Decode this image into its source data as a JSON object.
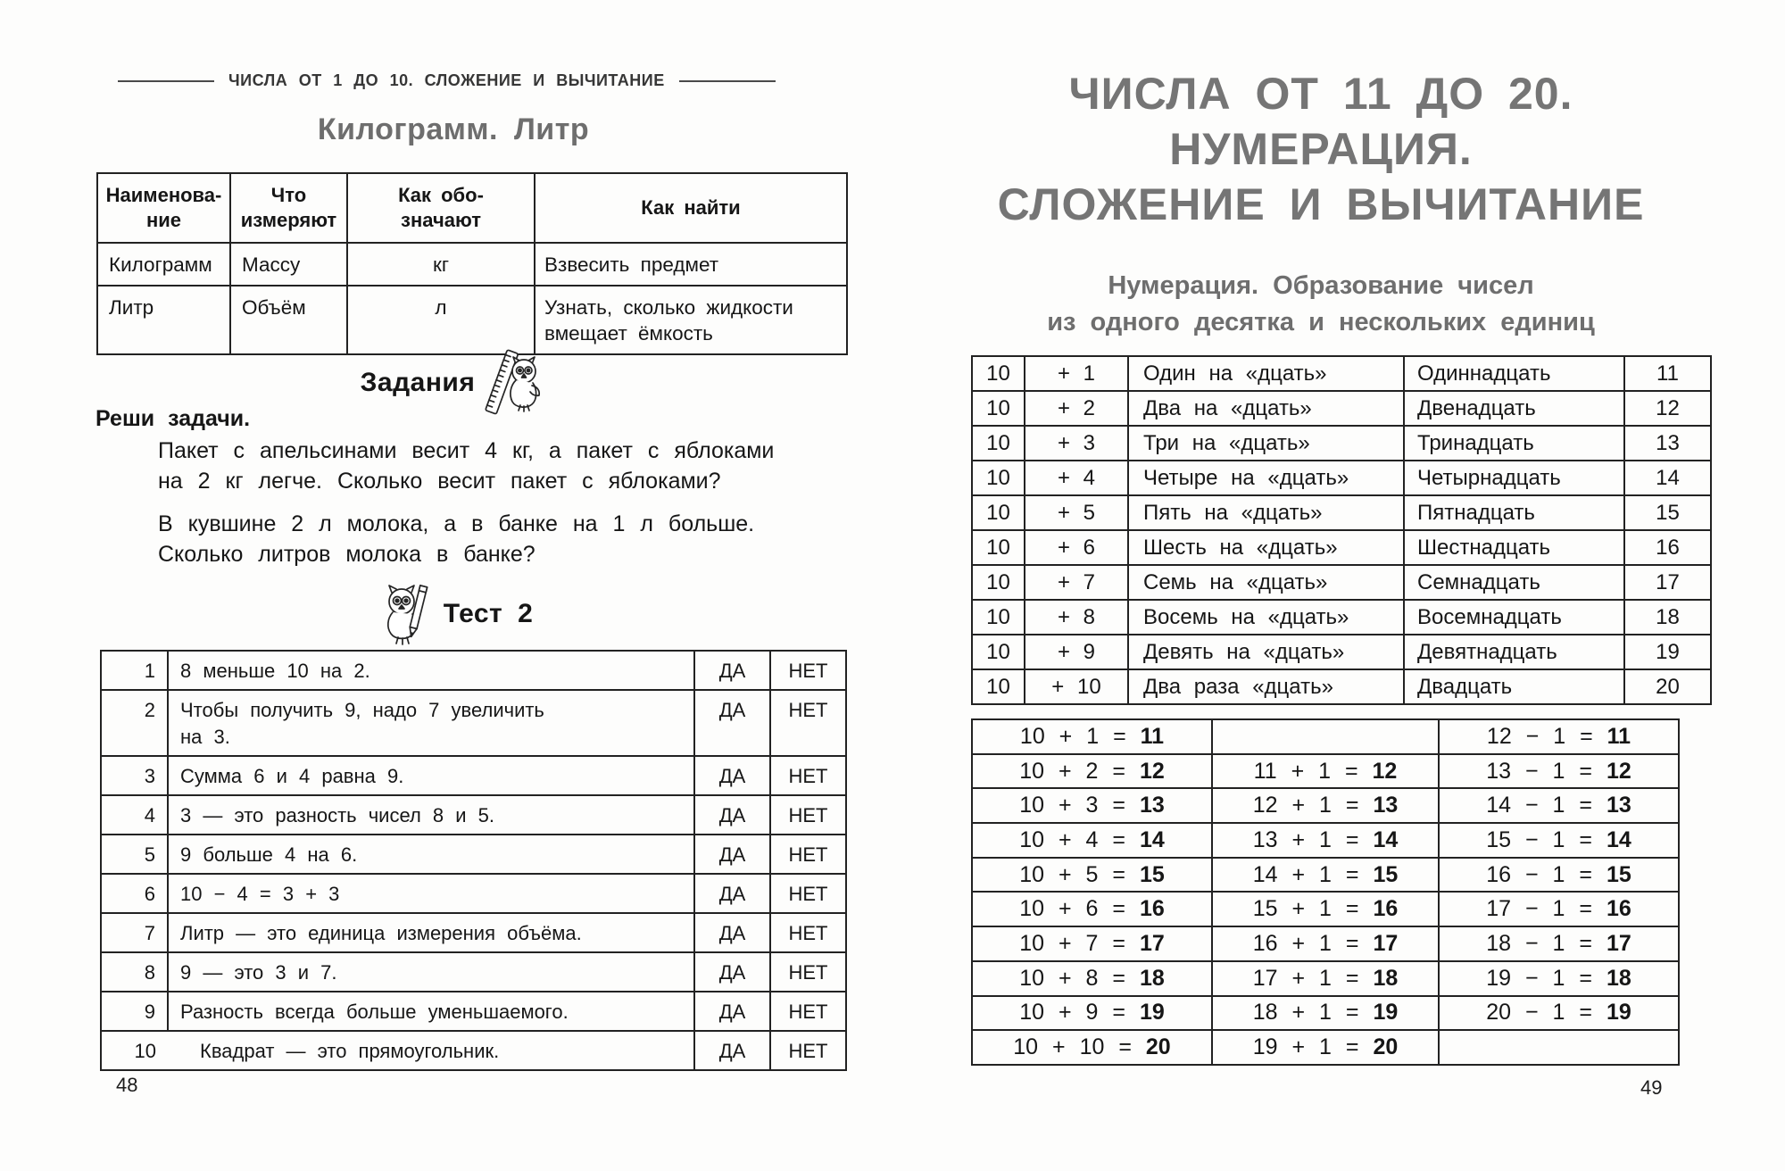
{
  "colors": {
    "heading_gray": "#6e6e6e",
    "text": "#161616",
    "border": "#222222"
  },
  "left_page": {
    "running_head": "ЧИСЛА ОТ 1 ДО 10. СЛОЖЕНИЕ И ВЫЧИТАНИЕ",
    "section_title": "Килограмм. Литр",
    "measures_table": {
      "headers": [
        "Наименова-\nние",
        "Что\nизмеряют",
        "Как обо-\nзначают",
        "Как найти"
      ],
      "rows": [
        [
          "Килограмм",
          "Массу",
          "кг",
          "Взвесить предмет"
        ],
        [
          "Литр",
          "Объём",
          "л",
          "Узнать, сколько жидкости\nвмещает ёмкость"
        ]
      ]
    },
    "tasks_heading": "Задания",
    "tasks_icon": "owl-ruler-icon",
    "solve_label": "Реши задачи.",
    "tasks": [
      "Пакет с апельсинами весит 4 кг, а пакет с яблоками\nна 2 кг легче. Сколько весит пакет с яблоками?",
      "В кувшине 2 л молока, а в банке на 1 л больше.\nСколько литров молока в банке?"
    ],
    "test_heading": "Тест 2",
    "test_icon": "owl-pencil-icon",
    "test_table": {
      "yes_label": "ДА",
      "no_label": "НЕТ",
      "rows": [
        {
          "num": "1",
          "text": "8 меньше 10 на 2."
        },
        {
          "num": "2",
          "text": "Чтобы получить 9, надо 7 увеличить\nна 3."
        },
        {
          "num": "3",
          "text": "Сумма 6 и 4 равна 9."
        },
        {
          "num": "4",
          "text": "3 — это разность чисел 8 и 5."
        },
        {
          "num": "5",
          "text": "9 больше 4 на 6."
        },
        {
          "num": "6",
          "text": "10 − 4 = 3 + 3"
        },
        {
          "num": "7",
          "text": "Литр — это единица измерения объёма."
        },
        {
          "num": "8",
          "text": "9 — это 3 и 7."
        },
        {
          "num": "9",
          "text": "Разность всегда больше уменьшаемого."
        },
        {
          "num": "10",
          "text": "Квадрат — это прямоугольник."
        }
      ]
    },
    "page_number": "48"
  },
  "right_page": {
    "chapter_title_lines": [
      "ЧИСЛА ОТ 11 ДО 20.",
      "НУМЕРАЦИЯ.",
      "СЛОЖЕНИЕ И ВЫЧИТАНИЕ"
    ],
    "subtitle_lines": [
      "Нумерация. Образование чисел",
      "из одного десятка и нескольких единиц"
    ],
    "numeration_table": {
      "rows": [
        [
          "10",
          "+ 1",
          "Один на «дцать»",
          "Одиннадцать",
          "11"
        ],
        [
          "10",
          "+ 2",
          "Два на «дцать»",
          "Двенадцать",
          "12"
        ],
        [
          "10",
          "+ 3",
          "Три на «дцать»",
          "Тринадцать",
          "13"
        ],
        [
          "10",
          "+ 4",
          "Четыре на «дцать»",
          "Четырнадцать",
          "14"
        ],
        [
          "10",
          "+ 5",
          "Пять на «дцать»",
          "Пятнадцать",
          "15"
        ],
        [
          "10",
          "+ 6",
          "Шесть на «дцать»",
          "Шестнадцать",
          "16"
        ],
        [
          "10",
          "+ 7",
          "Семь на «дцать»",
          "Семнадцать",
          "17"
        ],
        [
          "10",
          "+ 8",
          "Восемь на «дцать»",
          "Восемнадцать",
          "18"
        ],
        [
          "10",
          "+ 9",
          "Девять на «дцать»",
          "Девятнадцать",
          "19"
        ],
        [
          "10",
          "+ 10",
          "Два раза «дцать»",
          "Двадцать",
          "20"
        ]
      ]
    },
    "equations_table": {
      "rows": [
        [
          {
            "expr": "10 + 1 =",
            "result": "11"
          },
          null,
          {
            "expr": "12 − 1 =",
            "result": "11"
          }
        ],
        [
          {
            "expr": "10 + 2 =",
            "result": "12"
          },
          {
            "expr": "11 + 1 =",
            "result": "12"
          },
          {
            "expr": "13 − 1 =",
            "result": "12"
          }
        ],
        [
          {
            "expr": "10 + 3 =",
            "result": "13"
          },
          {
            "expr": "12 + 1 =",
            "result": "13"
          },
          {
            "expr": "14 − 1 =",
            "result": "13"
          }
        ],
        [
          {
            "expr": "10 + 4 =",
            "result": "14"
          },
          {
            "expr": "13 + 1 =",
            "result": "14"
          },
          {
            "expr": "15 − 1 =",
            "result": "14"
          }
        ],
        [
          {
            "expr": "10 + 5 =",
            "result": "15"
          },
          {
            "expr": "14 + 1 =",
            "result": "15"
          },
          {
            "expr": "16 − 1 =",
            "result": "15"
          }
        ],
        [
          {
            "expr": "10 + 6 =",
            "result": "16"
          },
          {
            "expr": "15 + 1 =",
            "result": "16"
          },
          {
            "expr": "17 − 1 =",
            "result": "16"
          }
        ],
        [
          {
            "expr": "10 + 7 =",
            "result": "17"
          },
          {
            "expr": "16 + 1 =",
            "result": "17"
          },
          {
            "expr": "18 − 1 =",
            "result": "17"
          }
        ],
        [
          {
            "expr": "10 + 8 =",
            "result": "18"
          },
          {
            "expr": "17 + 1 =",
            "result": "18"
          },
          {
            "expr": "19 − 1 =",
            "result": "18"
          }
        ],
        [
          {
            "expr": "10 + 9 =",
            "result": "19"
          },
          {
            "expr": "18 + 1 =",
            "result": "19"
          },
          {
            "expr": "20 − 1 =",
            "result": "19"
          }
        ],
        [
          {
            "expr": "10 + 10 =",
            "result": "20"
          },
          {
            "expr": "19 + 1 =",
            "result": "20"
          },
          null
        ]
      ]
    },
    "page_number": "49"
  }
}
